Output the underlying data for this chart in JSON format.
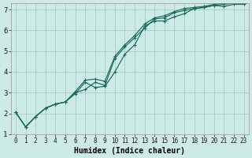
{
  "title": "",
  "xlabel": "Humidex (Indice chaleur)",
  "ylabel": "",
  "background_color": "#cceae6",
  "grid_color": "#aaccc8",
  "line_color": "#1a6b5a",
  "xlim": [
    -0.5,
    23.5
  ],
  "ylim": [
    1,
    7.3
  ],
  "xticks": [
    0,
    1,
    2,
    3,
    4,
    5,
    6,
    7,
    8,
    9,
    10,
    11,
    12,
    13,
    14,
    15,
    16,
    17,
    18,
    19,
    20,
    21,
    22,
    23
  ],
  "yticks": [
    1,
    2,
    3,
    4,
    5,
    6,
    7
  ],
  "series1_x": [
    0,
    1,
    2,
    3,
    4,
    5,
    6,
    7,
    8,
    9,
    10,
    11,
    12,
    13,
    14,
    15,
    16,
    17,
    18,
    19,
    20,
    21,
    22,
    23
  ],
  "series1_y": [
    2.05,
    1.35,
    1.85,
    2.25,
    2.45,
    2.55,
    2.95,
    3.5,
    3.25,
    3.3,
    4.0,
    4.85,
    5.3,
    6.2,
    6.45,
    6.45,
    6.65,
    6.8,
    7.05,
    7.1,
    7.2,
    7.15,
    7.25,
    7.25
  ],
  "series2_x": [
    0,
    1,
    2,
    3,
    4,
    5,
    6,
    7,
    8,
    9,
    10,
    11,
    12,
    13,
    14,
    15,
    16,
    17,
    18,
    19,
    20,
    21,
    22,
    23
  ],
  "series2_y": [
    2.05,
    1.35,
    1.85,
    2.25,
    2.45,
    2.55,
    3.0,
    3.15,
    3.5,
    3.35,
    4.65,
    5.2,
    5.65,
    6.1,
    6.55,
    6.6,
    6.85,
    6.95,
    7.05,
    7.1,
    7.2,
    7.25,
    7.3,
    7.3
  ],
  "series3_x": [
    0,
    1,
    2,
    3,
    4,
    5,
    6,
    7,
    8,
    9,
    10,
    11,
    12,
    13,
    14,
    15,
    16,
    17,
    18,
    19,
    20,
    21,
    22,
    23
  ],
  "series3_y": [
    2.05,
    1.35,
    1.85,
    2.25,
    2.45,
    2.55,
    3.05,
    3.6,
    3.65,
    3.55,
    4.75,
    5.3,
    5.75,
    6.3,
    6.6,
    6.7,
    6.9,
    7.05,
    7.1,
    7.15,
    7.25,
    7.3,
    7.35,
    7.35
  ]
}
